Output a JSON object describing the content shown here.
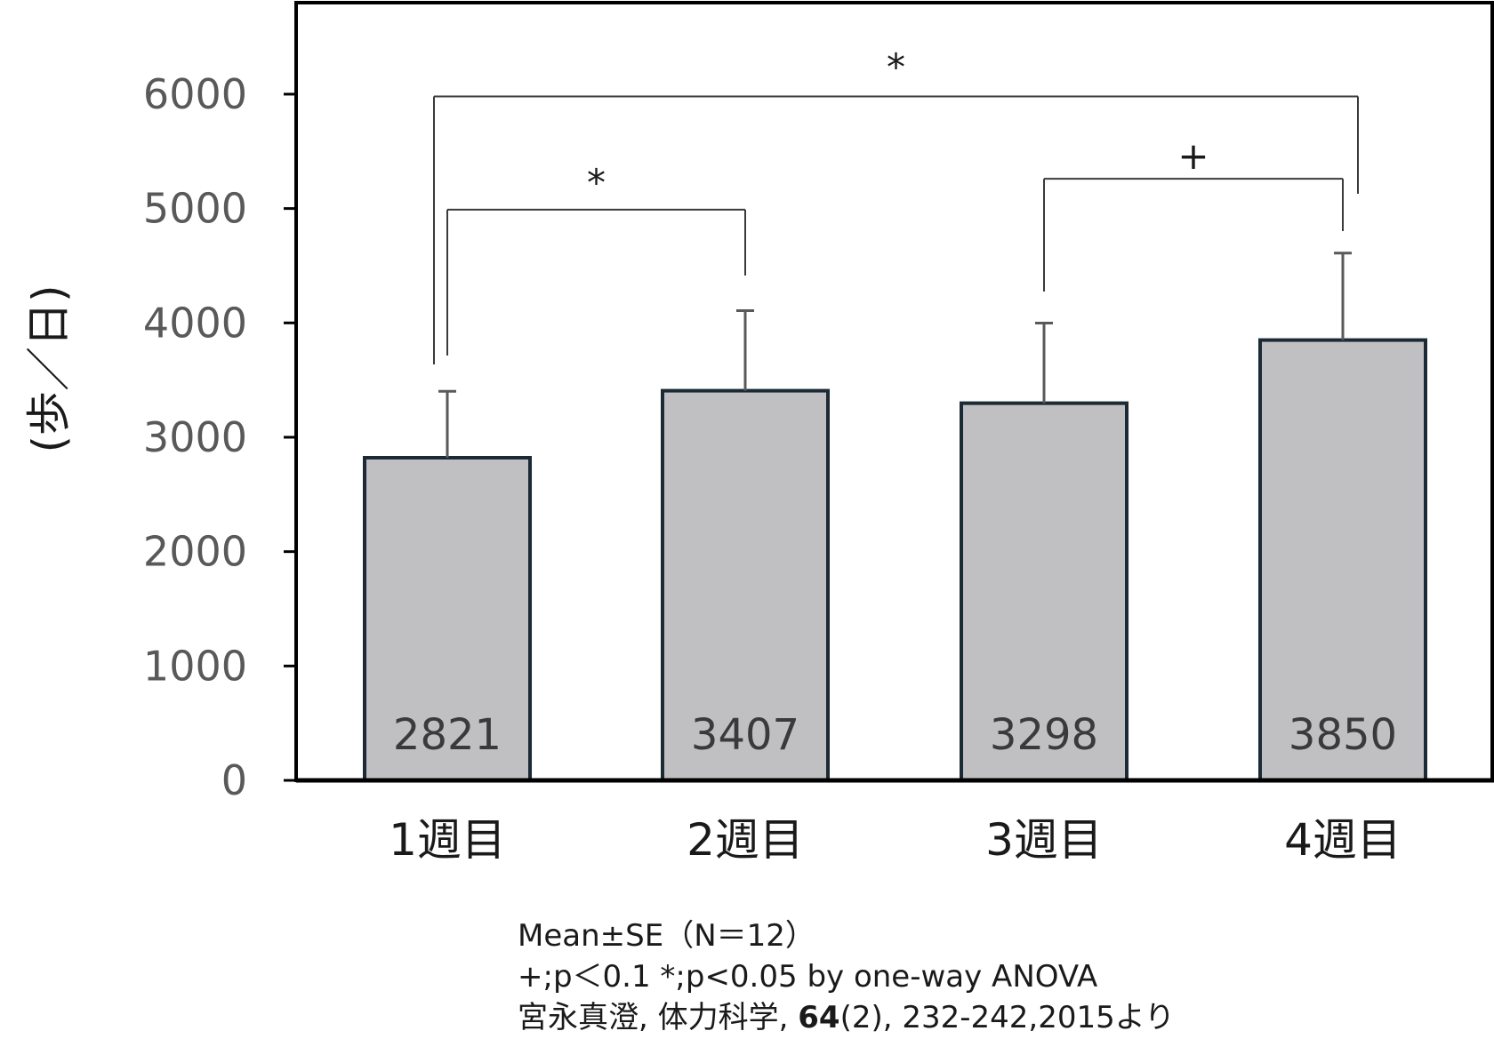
{
  "chart_data": {
    "type": "bar",
    "categories": [
      "1週目",
      "2週目",
      "3週目",
      "4週目"
    ],
    "values": [
      2821,
      3407,
      3298,
      3850
    ],
    "errors": [
      581,
      700,
      700,
      760
    ],
    "value_labels": [
      "2821",
      "3407",
      "3298",
      "3850"
    ],
    "title": "",
    "xlabel": "",
    "ylabel": "(歩／日)",
    "ylim": [
      0,
      6800
    ],
    "yticks": [
      0,
      1000,
      2000,
      3000,
      4000,
      5000,
      6000
    ],
    "ytick_labels": [
      "0",
      "1000",
      "2000",
      "3000",
      "4000",
      "5000",
      "6000"
    ],
    "grid": false,
    "bar_color": "#c0c0c2",
    "bar_edge_color": "#1b2a35",
    "error_color": "#595959",
    "significance": [
      {
        "from": 0,
        "to": 1,
        "label": "*",
        "level": 4990
      },
      {
        "from": 2,
        "to": 3,
        "label": "+",
        "level": 5260
      },
      {
        "from": 0,
        "to": 3,
        "label": "*",
        "level": 5980
      }
    ]
  },
  "notes": {
    "line1": "Mean±SE（N＝12）",
    "line2": "+;p＜0.1 *;p<0.05 by one-way ANOVA",
    "line3_pre": "宮永真澄, 体力科学, ",
    "line3_bold": "64",
    "line3_post": "(2), 232-242,2015より"
  }
}
